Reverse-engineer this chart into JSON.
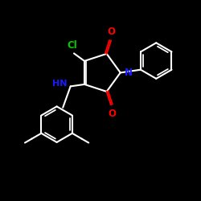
{
  "bg_color": "#000000",
  "bond_color": "#ffffff",
  "N_color": "#1a1aff",
  "O_color": "#ff0000",
  "Cl_color": "#00cc00",
  "NH_color": "#1a1aff",
  "line_width": 1.5,
  "figsize": [
    2.5,
    2.5
  ],
  "dpi": 100,
  "xlim": [
    0,
    10
  ],
  "ylim": [
    0,
    10
  ]
}
